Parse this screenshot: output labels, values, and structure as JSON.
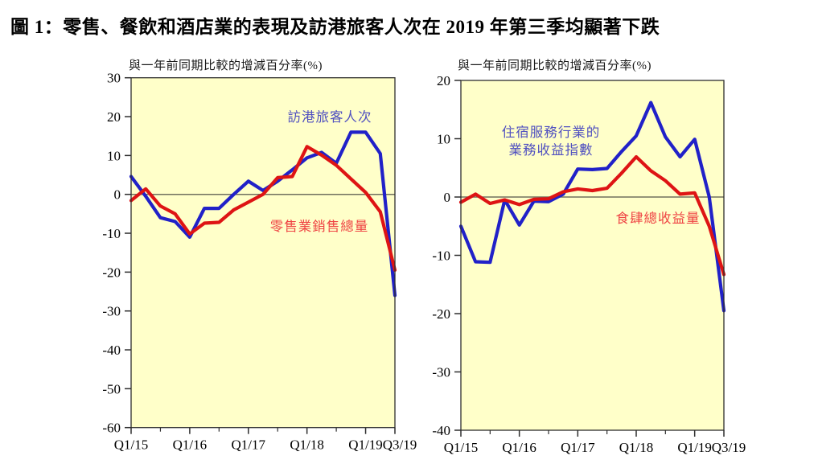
{
  "page": {
    "title": "圖 1：零售、餐飲和酒店業的表現及訪港旅客人次在 2019 年第三季均顯著下跌"
  },
  "chart_data": [
    {
      "id": "visitors-retail",
      "type": "line",
      "axis_title": "與一年前同期比較的增減百分率(%)",
      "categories": [
        "Q1/15",
        "Q2/15",
        "Q3/15",
        "Q4/15",
        "Q1/16",
        "Q2/16",
        "Q3/16",
        "Q4/16",
        "Q1/17",
        "Q2/17",
        "Q3/17",
        "Q4/17",
        "Q1/18",
        "Q2/18",
        "Q3/18",
        "Q4/18",
        "Q1/19",
        "Q2/19",
        "Q3/19"
      ],
      "x_axis_ticks": [
        {
          "label": "Q1/15",
          "index": 0
        },
        {
          "label": "Q1/16",
          "index": 4
        },
        {
          "label": "Q1/17",
          "index": 8
        },
        {
          "label": "Q1/18",
          "index": 12
        },
        {
          "label": "Q1/19",
          "index": 16
        },
        {
          "label": "Q3/19",
          "index": 18
        }
      ],
      "ylim": [
        -60,
        30
      ],
      "yticks": [
        30,
        20,
        10,
        0,
        -10,
        -20,
        -30,
        -40,
        -50,
        -60
      ],
      "grid": false,
      "plot_bg": "#FFFFC9",
      "series": [
        {
          "name": "訪港旅客人次",
          "label_lines": [
            "訪港旅客人次"
          ],
          "color": "#2121C8",
          "label_color": "#5050C0",
          "values": [
            4.6,
            -0.5,
            -6,
            -7,
            -11,
            -3.6,
            -3.6,
            0,
            3.4,
            1,
            3.4,
            6.3,
            9.4,
            10.8,
            8,
            16,
            16,
            10.5,
            -26
          ]
        },
        {
          "name": "零售業銷售總量",
          "label_lines": [
            "零售業銷售總量"
          ],
          "color": "#DE1414",
          "label_color": "#EF4444",
          "values": [
            -1.6,
            1.4,
            -3,
            -5,
            -10.2,
            -7.4,
            -7.2,
            -4,
            -2,
            0,
            4.3,
            4.6,
            12.3,
            10.1,
            7.5,
            4,
            0.5,
            -4.5,
            -19.5
          ]
        }
      ]
    },
    {
      "id": "accommodation-restaurants",
      "type": "line",
      "axis_title": "與一年前同期比較的增減百分率(%)",
      "categories": [
        "Q1/15",
        "Q2/15",
        "Q3/15",
        "Q4/15",
        "Q1/16",
        "Q2/16",
        "Q3/16",
        "Q4/16",
        "Q1/17",
        "Q2/17",
        "Q3/17",
        "Q4/17",
        "Q1/18",
        "Q2/18",
        "Q3/18",
        "Q4/18",
        "Q1/19",
        "Q2/19",
        "Q3/19"
      ],
      "x_axis_ticks": [
        {
          "label": "Q1/15",
          "index": 0
        },
        {
          "label": "Q1/16",
          "index": 4
        },
        {
          "label": "Q1/17",
          "index": 8
        },
        {
          "label": "Q1/18",
          "index": 12
        },
        {
          "label": "Q1/19",
          "index": 16
        },
        {
          "label": "Q3/19",
          "index": 18
        }
      ],
      "ylim": [
        -40,
        20
      ],
      "yticks": [
        20,
        10,
        0,
        -10,
        -20,
        -30,
        -40
      ],
      "grid": false,
      "plot_bg": "#FFFFC9",
      "series": [
        {
          "name": "住宿服務行業的業務收益指數",
          "label_lines": [
            "住宿服務行業的",
            "業務收益指數"
          ],
          "color": "#2121C8",
          "label_color": "#5050C0",
          "values": [
            -5,
            -11.1,
            -11.2,
            -0.5,
            -4.8,
            -0.7,
            -0.8,
            0.5,
            4.8,
            4.7,
            4.9,
            7.8,
            10.5,
            16.2,
            10.3,
            6.9,
            9.9,
            0,
            -19.5
          ]
        },
        {
          "name": "食肆總收益量",
          "label_lines": [
            "食肆總收益量"
          ],
          "color": "#DE1414",
          "label_color": "#EF4444",
          "values": [
            -0.9,
            0.5,
            -1.1,
            -0.5,
            -1.3,
            -0.4,
            -0.3,
            0.9,
            1.4,
            1.1,
            1.5,
            4.1,
            6.9,
            4.5,
            2.8,
            0.5,
            0.7,
            -5,
            -13.3
          ]
        }
      ]
    }
  ]
}
